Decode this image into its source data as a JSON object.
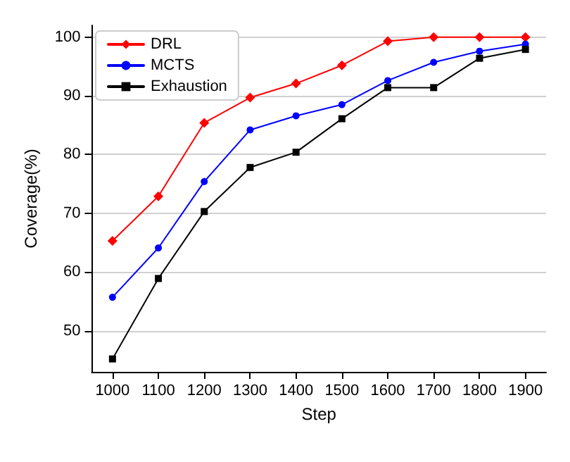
{
  "chart_data": {
    "type": "line",
    "xlabel": "Step",
    "ylabel": "Coverage(%)",
    "x": [
      1000,
      1100,
      1200,
      1300,
      1400,
      1500,
      1600,
      1700,
      1800,
      1900
    ],
    "series": [
      {
        "name": "DRL",
        "color": "#ff0000",
        "marker": "diamond",
        "values": [
          65.3,
          72.9,
          85.4,
          89.7,
          92.1,
          95.2,
          99.3,
          100,
          100,
          100
        ]
      },
      {
        "name": "MCTS",
        "color": "#0000ff",
        "marker": "circle",
        "values": [
          55.7,
          64.1,
          75.4,
          84.2,
          86.6,
          88.5,
          92.6,
          95.7,
          97.6,
          98.8
        ]
      },
      {
        "name": "Exhaustion",
        "color": "#000000",
        "marker": "square",
        "values": [
          45.2,
          58.9,
          70.3,
          77.8,
          80.4,
          86.1,
          91.4,
          91.4,
          96.4,
          97.9
        ]
      }
    ],
    "xlim": [
      955,
      1945
    ],
    "xticks": [
      1000,
      1100,
      1200,
      1300,
      1400,
      1500,
      1600,
      1700,
      1800,
      1900
    ],
    "ylim": [
      43,
      102
    ],
    "yticks": [
      50,
      60,
      70,
      80,
      90,
      100
    ],
    "grid": "y",
    "legend": "top left",
    "line_style": "solid"
  }
}
